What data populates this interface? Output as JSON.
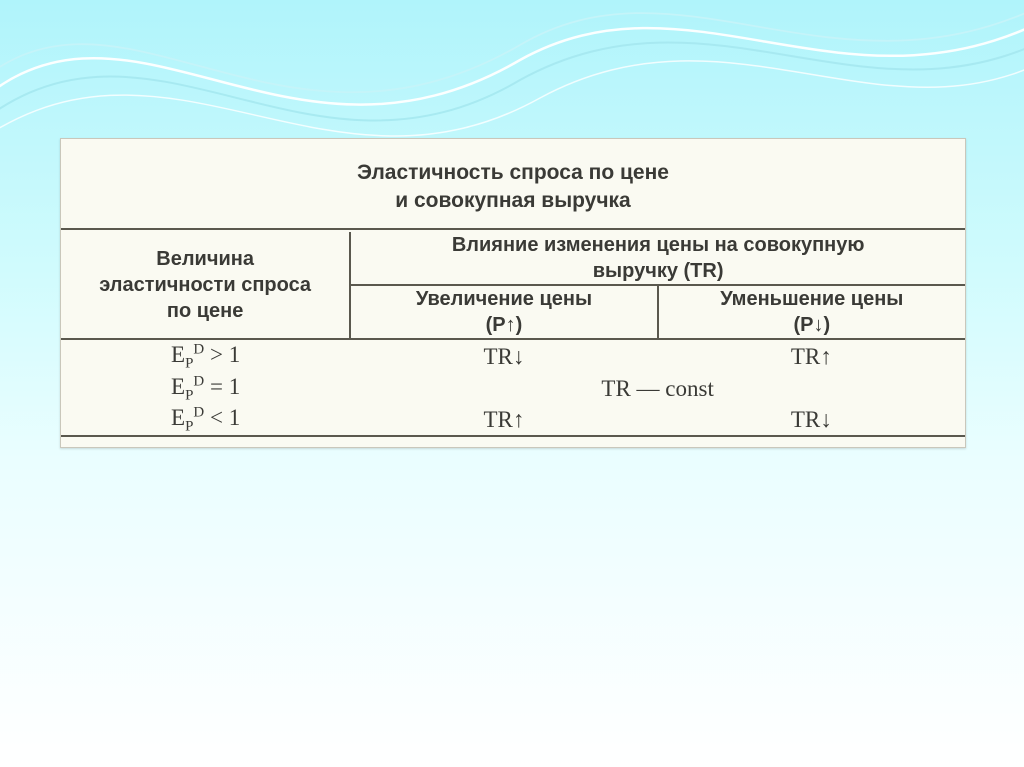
{
  "slide": {
    "background_gradient_top": "#b0f4fb",
    "background_gradient_bottom": "#ffffff",
    "box_background": "#fafaf2",
    "box_border": "#c9c7bb",
    "rule_color": "#5a584e",
    "title_line1": "Эластичность спроса по цене",
    "title_line2": "и совокупная выручка",
    "headers": {
      "col1_line1": "Величина",
      "col1_line2": "эластичности спроса",
      "col1_line3": "по цене",
      "merged_top_line1": "Влияние изменения цены на совокупную",
      "merged_top_line2": "выручку (TR)",
      "col2_line1": "Увеличение цены",
      "col2_line2": "(P↑)",
      "col3_line1": "Уменьшение цены",
      "col3_line2": "(P↓)"
    },
    "rows": [
      {
        "elasticity_html": "E<sub>P</sub><sup>D</sup> > 1",
        "tr_up": "TR↓",
        "tr_down": "TR↑",
        "merged": false
      },
      {
        "elasticity_html": "E<sub>P</sub><sup>D</sup> = 1",
        "tr_const": "TR — const",
        "merged": true
      },
      {
        "elasticity_html": "E<sub>P</sub><sup>D</sup> < 1",
        "tr_up": "TR↑",
        "tr_down": "TR↓",
        "merged": false
      }
    ],
    "font_sizes": {
      "title": 21,
      "header": 20,
      "data": 22
    }
  }
}
